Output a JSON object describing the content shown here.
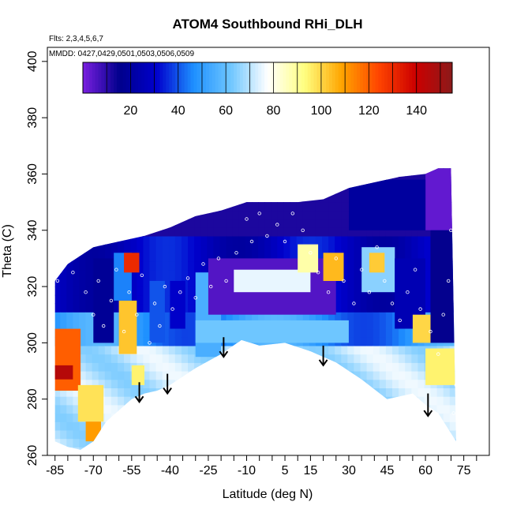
{
  "chart_data": {
    "type": "heatmap",
    "title": "ATOM4 Southbound RHi_DLH",
    "subtitle": "Flts: 2,3,4,5,6,7",
    "annotation": "MMDD: 0427,0429,0501,0503,0506,0509",
    "xlabel": "Latitude (deg N)",
    "ylabel": "Theta (C)",
    "xlim": [
      -88,
      85
    ],
    "ylim": [
      260,
      405
    ],
    "x_ticks": [
      -85,
      -70,
      -55,
      -40,
      -25,
      -10,
      5,
      15,
      30,
      45,
      60,
      75
    ],
    "x_minor_ticks": [
      -80,
      -75,
      -65,
      -60,
      -50,
      -45,
      -35,
      -30,
      -20,
      -15,
      -5,
      0,
      10,
      20,
      25,
      35,
      40,
      50,
      55,
      65,
      70,
      80
    ],
    "y_ticks": [
      260,
      280,
      300,
      320,
      340,
      360,
      380,
      400
    ],
    "colorbar": {
      "range": [
        0,
        155
      ],
      "ticks": [
        20,
        40,
        60,
        80,
        100,
        120,
        140
      ],
      "divisions": [
        0,
        10,
        20,
        30,
        40,
        50,
        60,
        70,
        80,
        90,
        100,
        110,
        120,
        130,
        140,
        150
      ],
      "colors": [
        "#7a1fe0",
        "#00008b",
        "#0000cd",
        "#1e90ff",
        "#6ec6ff",
        "#ffffff",
        "#ffff80",
        "#ffa500",
        "#ff4500",
        "#cc0000",
        "#8b1a1a"
      ],
      "position": "top"
    },
    "field_top_boundary": [
      [
        -85,
        322
      ],
      [
        -80,
        328
      ],
      [
        -70,
        334
      ],
      [
        -60,
        336
      ],
      [
        -50,
        338
      ],
      [
        -40,
        341
      ],
      [
        -30,
        345
      ],
      [
        -20,
        347
      ],
      [
        -10,
        350
      ],
      [
        0,
        350
      ],
      [
        10,
        350
      ],
      [
        20,
        351
      ],
      [
        30,
        355
      ],
      [
        40,
        357
      ],
      [
        50,
        359
      ],
      [
        60,
        360
      ],
      [
        65,
        362
      ],
      [
        70,
        362
      ]
    ],
    "field_bottom_boundary": [
      [
        -85,
        265
      ],
      [
        -80,
        263
      ],
      [
        -75,
        262
      ],
      [
        -70,
        265
      ],
      [
        -65,
        272
      ],
      [
        -60,
        276
      ],
      [
        -55,
        280
      ],
      [
        -50,
        282
      ],
      [
        -45,
        283
      ],
      [
        -40,
        285
      ],
      [
        -30,
        291
      ],
      [
        -20,
        296
      ],
      [
        -12,
        301
      ],
      [
        -5,
        299
      ],
      [
        5,
        300
      ],
      [
        15,
        297
      ],
      [
        25,
        293
      ],
      [
        35,
        287
      ],
      [
        45,
        280
      ],
      [
        55,
        282
      ],
      [
        60,
        278
      ],
      [
        65,
        275
      ],
      [
        72,
        265
      ]
    ],
    "cells": [
      {
        "x": [
          -86,
          -75
        ],
        "y": [
          283,
          305
        ],
        "v": 120
      },
      {
        "x": [
          -86,
          -78
        ],
        "y": [
          287,
          292
        ],
        "v": 145
      },
      {
        "x": [
          -76,
          -66
        ],
        "y": [
          272,
          285
        ],
        "v": 98
      },
      {
        "x": [
          -73,
          -67
        ],
        "y": [
          265,
          272
        ],
        "v": 110
      },
      {
        "x": [
          -70,
          -62
        ],
        "y": [
          300,
          330
        ],
        "v": 18
      },
      {
        "x": [
          -62,
          -55
        ],
        "y": [
          315,
          332
        ],
        "v": 45
      },
      {
        "x": [
          -58,
          -52
        ],
        "y": [
          325,
          332
        ],
        "v": 130
      },
      {
        "x": [
          -60,
          -53
        ],
        "y": [
          296,
          315
        ],
        "v": 103
      },
      {
        "x": [
          -55,
          -50
        ],
        "y": [
          285,
          292
        ],
        "v": 95
      },
      {
        "x": [
          -48,
          -42
        ],
        "y": [
          300,
          322
        ],
        "v": 40
      },
      {
        "x": [
          -40,
          -34
        ],
        "y": [
          305,
          322
        ],
        "v": 30
      },
      {
        "x": [
          -30,
          -20
        ],
        "y": [
          295,
          325
        ],
        "v": 55
      },
      {
        "x": [
          -25,
          25
        ],
        "y": [
          310,
          330
        ],
        "v": 5
      },
      {
        "x": [
          -15,
          15
        ],
        "y": [
          318,
          326
        ],
        "v": 75
      },
      {
        "x": [
          -30,
          30
        ],
        "y": [
          300,
          308
        ],
        "v": 62
      },
      {
        "x": [
          20,
          28
        ],
        "y": [
          322,
          332
        ],
        "v": 105
      },
      {
        "x": [
          10,
          18
        ],
        "y": [
          325,
          335
        ],
        "v": 88
      },
      {
        "x": [
          35,
          48
        ],
        "y": [
          318,
          334
        ],
        "v": 65
      },
      {
        "x": [
          38,
          44
        ],
        "y": [
          325,
          332
        ],
        "v": 102
      },
      {
        "x": [
          48,
          60
        ],
        "y": [
          305,
          330
        ],
        "v": 25
      },
      {
        "x": [
          55,
          62
        ],
        "y": [
          300,
          310
        ],
        "v": 100
      },
      {
        "x": [
          60,
          72
        ],
        "y": [
          285,
          298
        ],
        "v": 95
      },
      {
        "x": [
          60,
          72
        ],
        "y": [
          340,
          362
        ],
        "v": 3
      },
      {
        "x": [
          62,
          72
        ],
        "y": [
          300,
          340
        ],
        "v": 15
      },
      {
        "x": [
          30,
          60
        ],
        "y": [
          340,
          358
        ],
        "v": 20
      }
    ],
    "arrows": [
      {
        "x": -52,
        "y_start": 286,
        "y_end": 279
      },
      {
        "x": -41,
        "y_start": 289,
        "y_end": 282
      },
      {
        "x": -19,
        "y_start": 302,
        "y_end": 295
      },
      {
        "x": 20,
        "y_start": 299,
        "y_end": 292
      },
      {
        "x": 61,
        "y_start": 282,
        "y_end": 274
      }
    ],
    "sample_points": [
      [
        -84,
        322
      ],
      [
        -78,
        325
      ],
      [
        -73,
        318
      ],
      [
        -70,
        310
      ],
      [
        -68,
        322
      ],
      [
        -66,
        306
      ],
      [
        -63,
        315
      ],
      [
        -61,
        326
      ],
      [
        -58,
        304
      ],
      [
        -56,
        318
      ],
      [
        -53,
        310
      ],
      [
        -51,
        324
      ],
      [
        -48,
        300
      ],
      [
        -46,
        314
      ],
      [
        -44,
        306
      ],
      [
        -42,
        320
      ],
      [
        -39,
        312
      ],
      [
        -36,
        318
      ],
      [
        -33,
        323
      ],
      [
        -30,
        316
      ],
      [
        -27,
        328
      ],
      [
        -24,
        320
      ],
      [
        -21,
        330
      ],
      [
        -18,
        322
      ],
      [
        -14,
        332
      ],
      [
        -10,
        344
      ],
      [
        -8,
        336
      ],
      [
        -5,
        346
      ],
      [
        -2,
        338
      ],
      [
        2,
        342
      ],
      [
        5,
        336
      ],
      [
        8,
        346
      ],
      [
        12,
        340
      ],
      [
        15,
        332
      ],
      [
        18,
        325
      ],
      [
        22,
        318
      ],
      [
        25,
        330
      ],
      [
        28,
        322
      ],
      [
        32,
        314
      ],
      [
        35,
        326
      ],
      [
        38,
        318
      ],
      [
        41,
        334
      ],
      [
        44,
        322
      ],
      [
        47,
        314
      ],
      [
        50,
        308
      ],
      [
        53,
        318
      ],
      [
        56,
        326
      ],
      [
        58,
        312
      ],
      [
        62,
        304
      ],
      [
        65,
        296
      ],
      [
        67,
        310
      ],
      [
        69,
        322
      ],
      [
        70,
        340
      ],
      [
        71,
        355
      ],
      [
        72,
        285
      ],
      [
        71,
        275
      ]
    ]
  }
}
